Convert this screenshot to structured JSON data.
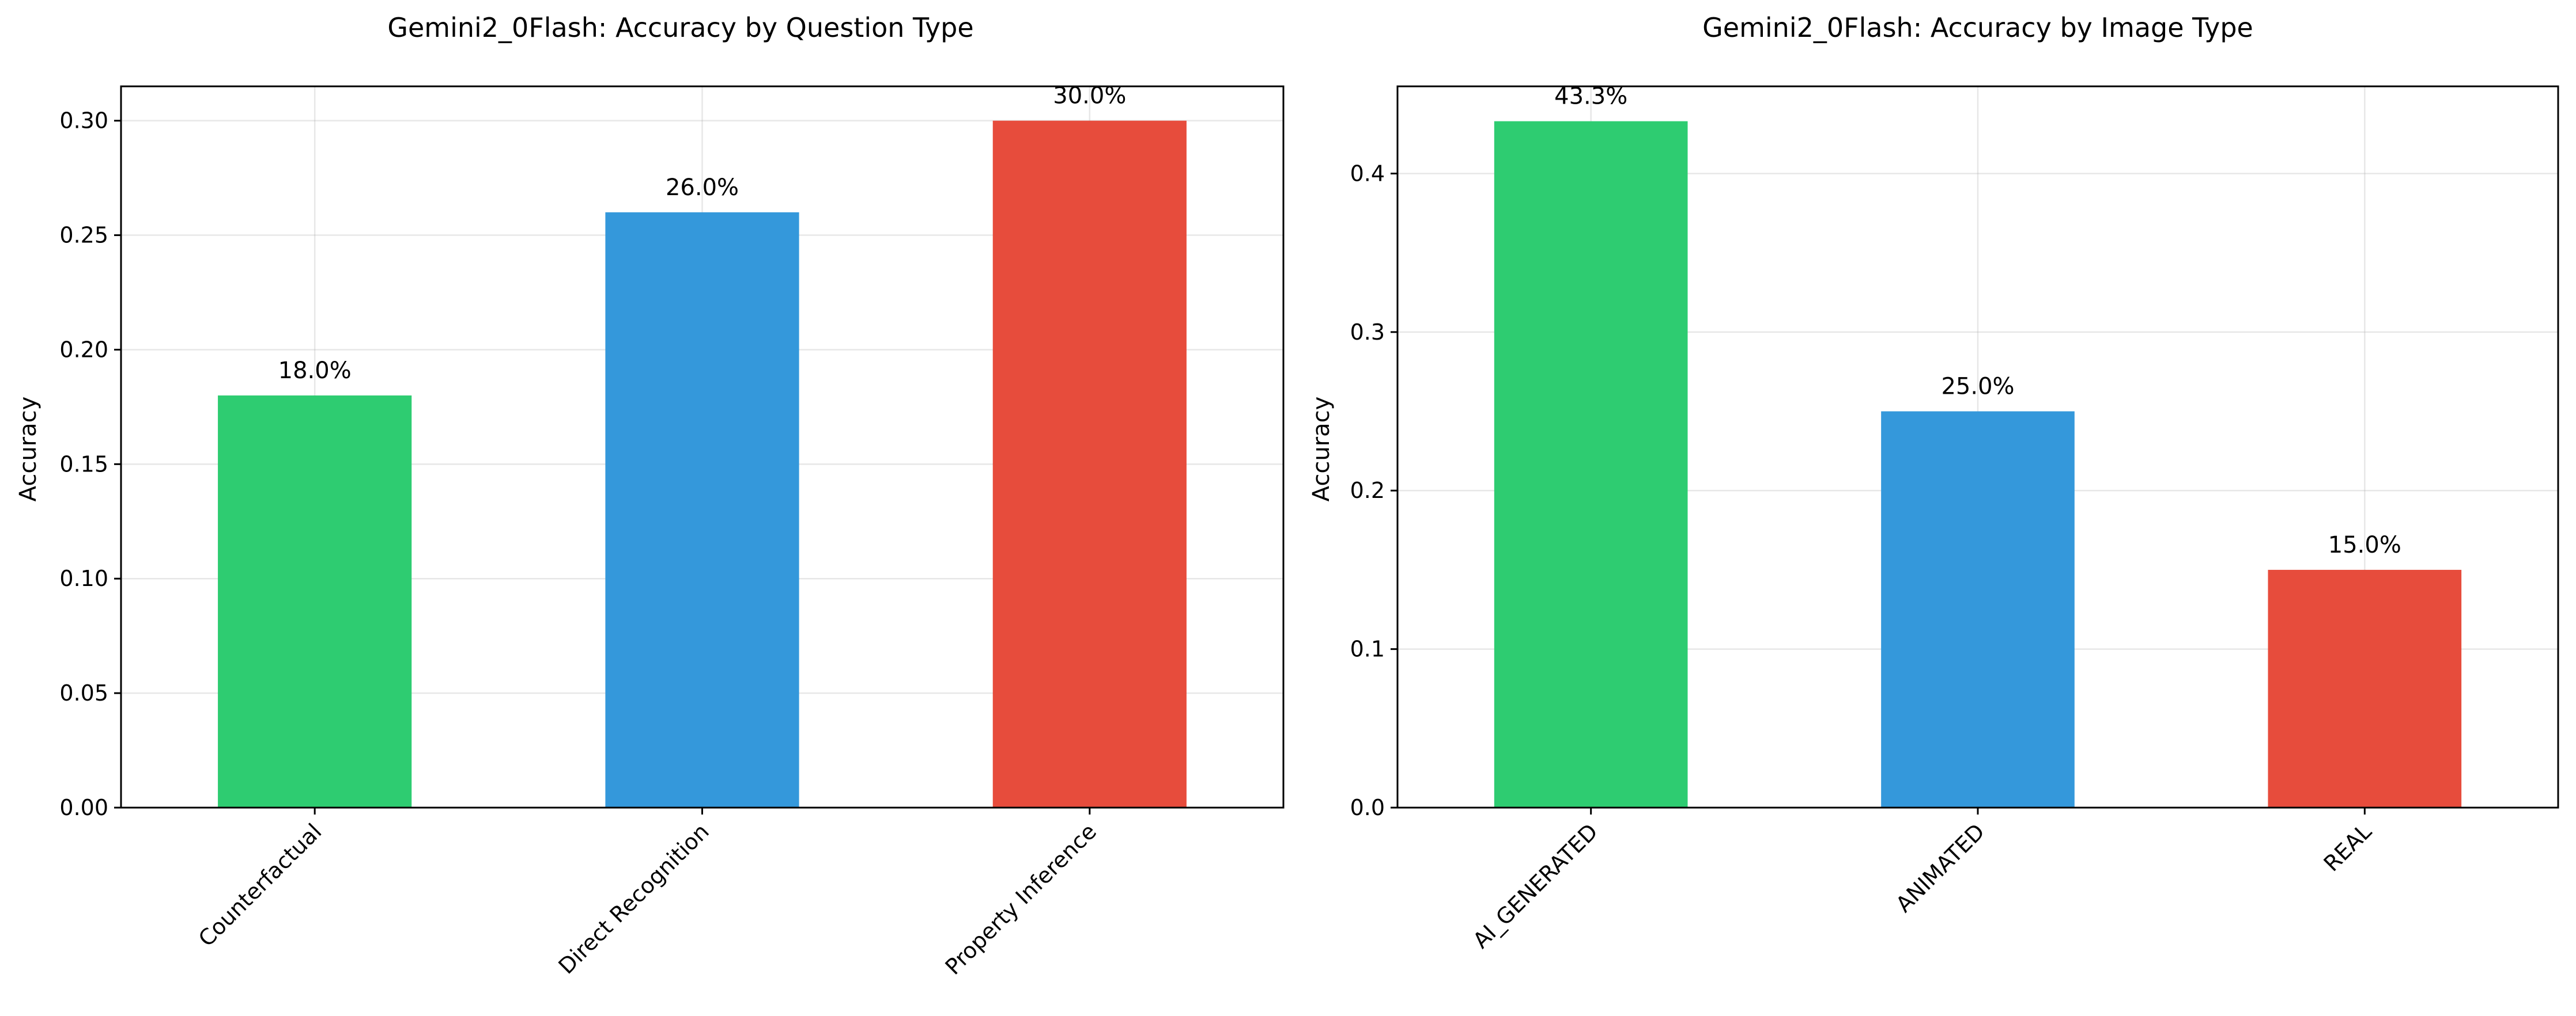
{
  "chart_data": [
    {
      "type": "bar",
      "title": "Gemini2_0Flash: Accuracy by Question Type",
      "xlabel": "",
      "ylabel": "Accuracy",
      "categories": [
        "Counterfactual",
        "Direct Recognition",
        "Property Inference"
      ],
      "values": [
        0.18,
        0.26,
        0.3
      ],
      "value_labels": [
        "18.0%",
        "26.0%",
        "30.0%"
      ],
      "colors": [
        "#2ecc71",
        "#3498db",
        "#e74c3c"
      ],
      "ylim": [
        0,
        0.315
      ],
      "yticks": [
        0.0,
        0.05,
        0.1,
        0.15,
        0.2,
        0.25,
        0.3
      ],
      "ytick_labels": [
        "0.00",
        "0.05",
        "0.10",
        "0.15",
        "0.20",
        "0.25",
        "0.30"
      ],
      "grid": true
    },
    {
      "type": "bar",
      "title": "Gemini2_0Flash: Accuracy by Image Type",
      "xlabel": "",
      "ylabel": "Accuracy",
      "categories": [
        "AI_GENERATED",
        "ANIMATED",
        "REAL"
      ],
      "values": [
        0.433,
        0.25,
        0.15
      ],
      "value_labels": [
        "43.3%",
        "25.0%",
        "15.0%"
      ],
      "colors": [
        "#2ecc71",
        "#3498db",
        "#e74c3c"
      ],
      "ylim": [
        0,
        0.455
      ],
      "yticks": [
        0.0,
        0.1,
        0.2,
        0.3,
        0.4
      ],
      "ytick_labels": [
        "0.0",
        "0.1",
        "0.2",
        "0.3",
        "0.4"
      ],
      "grid": true
    }
  ]
}
